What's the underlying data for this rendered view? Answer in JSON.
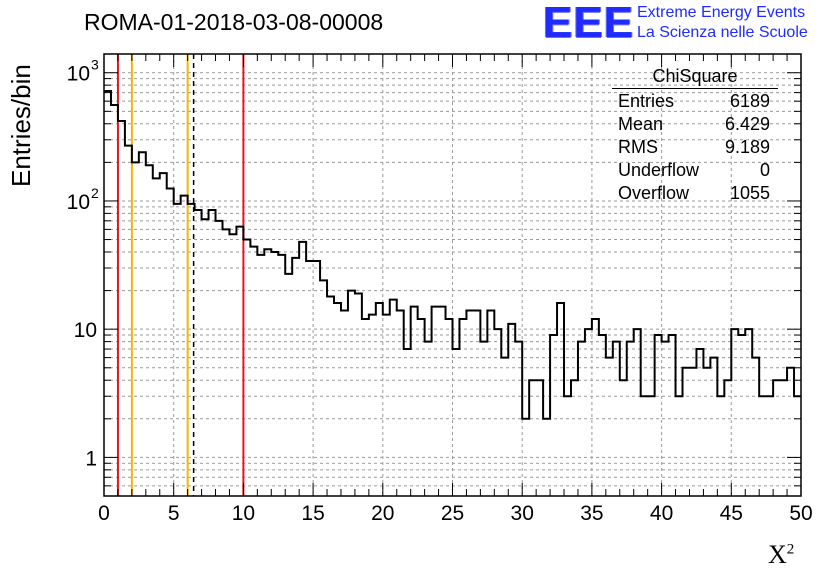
{
  "title": "ROMA-01-2018-03-08-00008",
  "logo": {
    "mark": "EEE",
    "line1": "Extreme Energy Events",
    "line2": "La Scienza nelle Scuole",
    "color": "#1f2bff"
  },
  "stats_box": {
    "title": "ChiSquare",
    "rows": [
      {
        "label": "Entries",
        "value": "6189"
      },
      {
        "label": "Mean",
        "value": "6.429"
      },
      {
        "label": "RMS",
        "value": "9.189"
      },
      {
        "label": "Underflow",
        "value": "0"
      },
      {
        "label": "Overflow",
        "value": "1055"
      }
    ]
  },
  "chart_data": {
    "type": "histogram",
    "title": "ROMA-01-2018-03-08-00008",
    "xlabel": "X",
    "xlabel_superscript": "2",
    "ylabel": "Entries/bin",
    "xlim": [
      0,
      50
    ],
    "ylim": [
      0.5,
      1400
    ],
    "yscale": "log",
    "grid": true,
    "bin_width": 0.5,
    "x_ticks": [
      0,
      5,
      10,
      15,
      20,
      25,
      30,
      35,
      40,
      45,
      50
    ],
    "y_tick_labels": [
      {
        "value": 1,
        "label": "1"
      },
      {
        "value": 10,
        "label": "10"
      },
      {
        "value": 100,
        "label": "10",
        "exp": "2"
      },
      {
        "value": 1000,
        "label": "10",
        "exp": "3"
      }
    ],
    "values": [
      720,
      560,
      420,
      270,
      200,
      240,
      190,
      150,
      165,
      125,
      95,
      110,
      95,
      85,
      72,
      85,
      70,
      60,
      55,
      63,
      50,
      44,
      38,
      42,
      40,
      38,
      27,
      36,
      48,
      34,
      34,
      24,
      18,
      16,
      14,
      20,
      19,
      12,
      13,
      16,
      13,
      17,
      14,
      7,
      15,
      12,
      8,
      15,
      15,
      12,
      7,
      12,
      14,
      14,
      8,
      14,
      10,
      6,
      11,
      8,
      2,
      4,
      4,
      2,
      9,
      16,
      3,
      4,
      8,
      10,
      12,
      9,
      6,
      8,
      4,
      8,
      10,
      3,
      3,
      9,
      8,
      9,
      3,
      5,
      5,
      7,
      5,
      6,
      3,
      4,
      10,
      9,
      10,
      6,
      3,
      3,
      4,
      4,
      5,
      3
    ],
    "vertical_lines": [
      {
        "x": 1.0,
        "color": "#e8141b",
        "style": "solid"
      },
      {
        "x": 2.0,
        "color": "#f2b705",
        "style": "solid"
      },
      {
        "x": 6.0,
        "color": "#f2b705",
        "style": "solid"
      },
      {
        "x": 6.429,
        "color": "#000000",
        "style": "dashed"
      },
      {
        "x": 10.0,
        "color": "#e8141b",
        "style": "solid"
      }
    ],
    "colors": {
      "histogram": "#000000",
      "grid": "#9a9a9a"
    }
  }
}
